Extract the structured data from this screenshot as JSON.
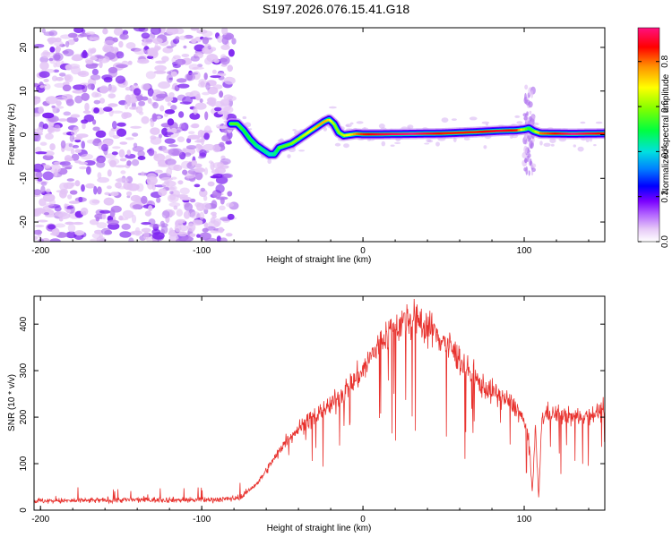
{
  "title": "S197.2026.076.15.41.G18",
  "chart_data": [
    {
      "type": "heatmap",
      "title": "S197.2026.076.15.41.G18",
      "xlabel": "Height of straight line (km)",
      "ylabel": "Frequency (Hz)",
      "xlim": [
        -204,
        150
      ],
      "ylim": [
        -24.5,
        24.5
      ],
      "xticks": [
        -200,
        -100,
        0,
        100
      ],
      "yticks": [
        -20,
        -10,
        0,
        10,
        20
      ],
      "colorbar": {
        "label": "Normalized spectral amplitude",
        "range": [
          0,
          0.95
        ],
        "ticks": [
          0.0,
          0.2,
          0.4,
          0.6,
          0.8
        ]
      },
      "noise_region_x": [
        -204,
        -80
      ],
      "ridge": {
        "x": [
          -82,
          -78,
          -74,
          -70,
          -66,
          -62,
          -58,
          -55,
          -52,
          -48,
          -44,
          -40,
          -36,
          -32,
          -28,
          -24,
          -21,
          -18,
          -15,
          -12,
          -8,
          -4,
          0,
          10,
          30,
          50,
          70,
          85,
          95,
          100,
          103,
          106,
          110,
          130,
          150
        ],
        "freq": [
          2.5,
          2.5,
          1.0,
          -1.0,
          -2.5,
          -3.5,
          -4.5,
          -4.5,
          -3.0,
          -2.5,
          -2.0,
          -1.0,
          0.0,
          1.0,
          2.0,
          3.0,
          3.5,
          2.5,
          0.5,
          -0.2,
          0.0,
          0.2,
          0.1,
          0.1,
          0.2,
          0.3,
          0.6,
          0.9,
          1.0,
          1.2,
          1.5,
          0.8,
          0.3,
          0.2,
          0.3
        ],
        "amplitude": [
          0.55,
          0.55,
          0.5,
          0.5,
          0.45,
          0.45,
          0.4,
          0.45,
          0.55,
          0.55,
          0.6,
          0.6,
          0.65,
          0.7,
          0.75,
          0.75,
          0.7,
          0.6,
          0.6,
          0.65,
          0.7,
          0.8,
          0.85,
          0.9,
          0.95,
          0.85,
          0.85,
          0.9,
          0.85,
          0.6,
          0.5,
          0.6,
          0.8,
          0.95,
          0.85
        ]
      }
    },
    {
      "type": "line",
      "xlabel": "Height of straight line (km)",
      "ylabel": "SNR (10 * v/v)",
      "xlim": [
        -204,
        150
      ],
      "ylim": [
        0,
        460
      ],
      "xticks": [
        -200,
        -100,
        0,
        100
      ],
      "yticks": [
        0,
        100,
        200,
        300,
        400
      ],
      "color": "#e8322e",
      "series": [
        {
          "name": "SNR",
          "x": [
            -204,
            -180,
            -150,
            -120,
            -100,
            -90,
            -80,
            -75,
            -70,
            -65,
            -60,
            -55,
            -50,
            -45,
            -40,
            -35,
            -30,
            -25,
            -20,
            -15,
            -10,
            -5,
            0,
            5,
            10,
            15,
            20,
            25,
            30,
            35,
            40,
            45,
            50,
            55,
            60,
            65,
            70,
            75,
            80,
            85,
            90,
            95,
            100,
            103,
            105,
            107,
            109,
            111,
            115,
            120,
            130,
            140,
            150
          ],
          "values": [
            20,
            20,
            22,
            22,
            22,
            23,
            25,
            30,
            45,
            60,
            85,
            110,
            140,
            160,
            175,
            190,
            200,
            215,
            225,
            245,
            260,
            280,
            300,
            330,
            355,
            380,
            395,
            405,
            410,
            405,
            395,
            380,
            365,
            345,
            325,
            300,
            280,
            265,
            255,
            245,
            235,
            220,
            190,
            150,
            40,
            180,
            25,
            200,
            210,
            205,
            200,
            205,
            215
          ]
        }
      ]
    }
  ]
}
